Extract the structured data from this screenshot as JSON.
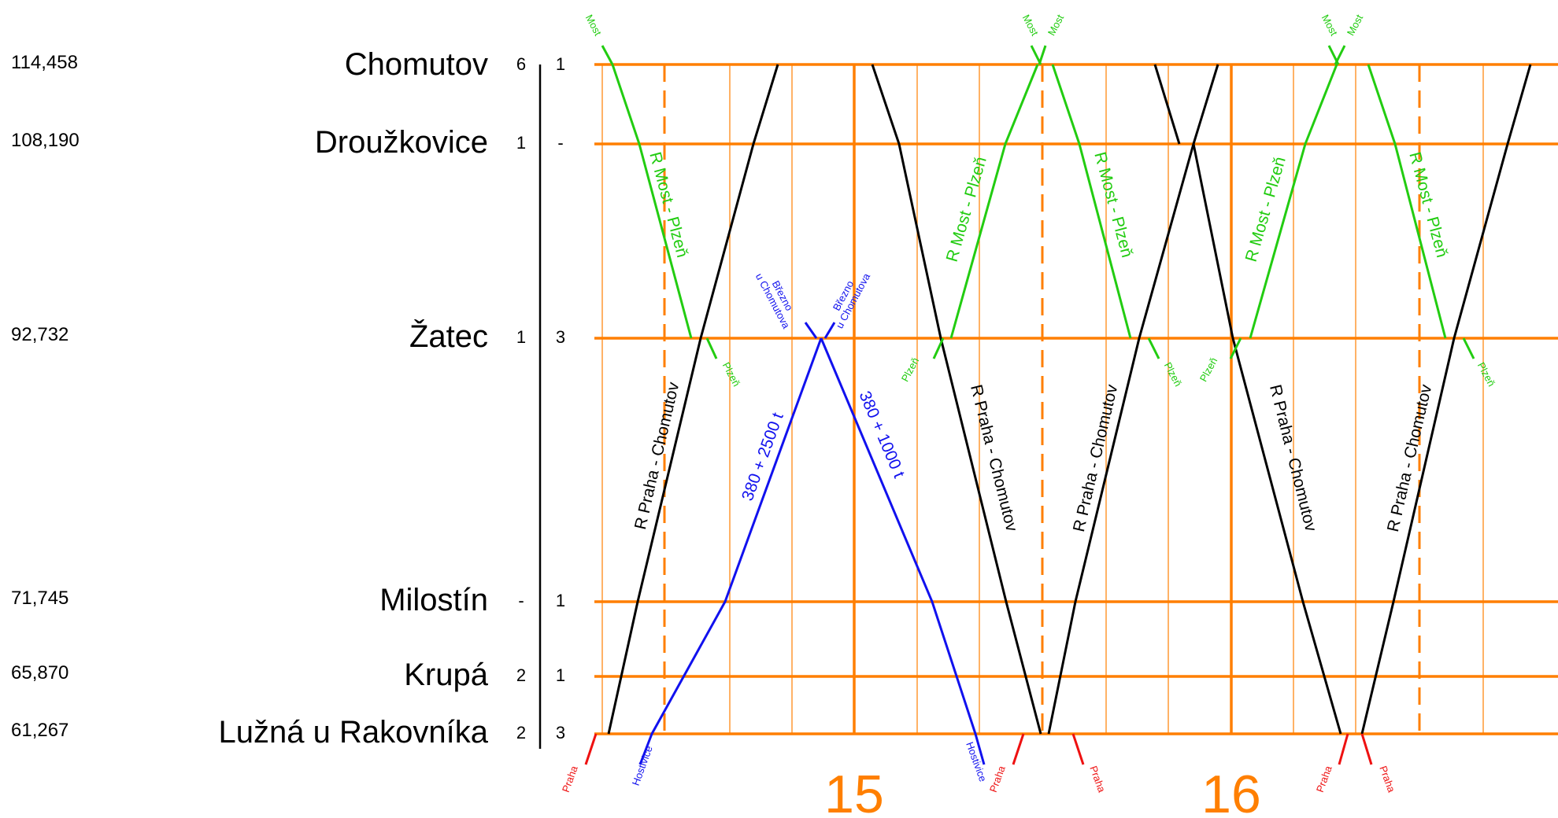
{
  "colors": {
    "grid": "#ff7f00",
    "black_trains": "#000000",
    "green_trains": "#22cc11",
    "blue_train": "#1111ee",
    "red_connections": "#ee1111",
    "hour_labels": "#ff7f00"
  },
  "stations": [
    {
      "km": "114,458",
      "name": "Chomutov",
      "track_left": "6",
      "track_right": "1"
    },
    {
      "km": "108,190",
      "name": "Droužkovice",
      "track_left": "1",
      "track_right": "-"
    },
    {
      "km": "92,732",
      "name": "Žatec",
      "track_left": "1",
      "track_right": "3"
    },
    {
      "km": "71,745",
      "name": "Milostín",
      "track_left": "-",
      "track_right": "1"
    },
    {
      "km": "65,870",
      "name": "Krupá",
      "track_left": "2",
      "track_right": "1"
    },
    {
      "km": "61,267",
      "name": "Lužná u Rakovníka",
      "track_left": "2",
      "track_right": "3"
    }
  ],
  "hours": [
    "15",
    "16"
  ],
  "train_labels": {
    "r_most_plzen": "R Most - Plzeň",
    "r_praha_chomutov": "R Praha - Chomutov",
    "freight_up": "380 + 2500 t",
    "freight_down": "380 + 1000 t"
  },
  "connection_labels": {
    "most": "Most",
    "plzen": "Plzeň",
    "praha": "Praha",
    "hostivice": "Hostivice",
    "brezno_line1": "Březno",
    "brezno_line2": "u Chomutova"
  }
}
